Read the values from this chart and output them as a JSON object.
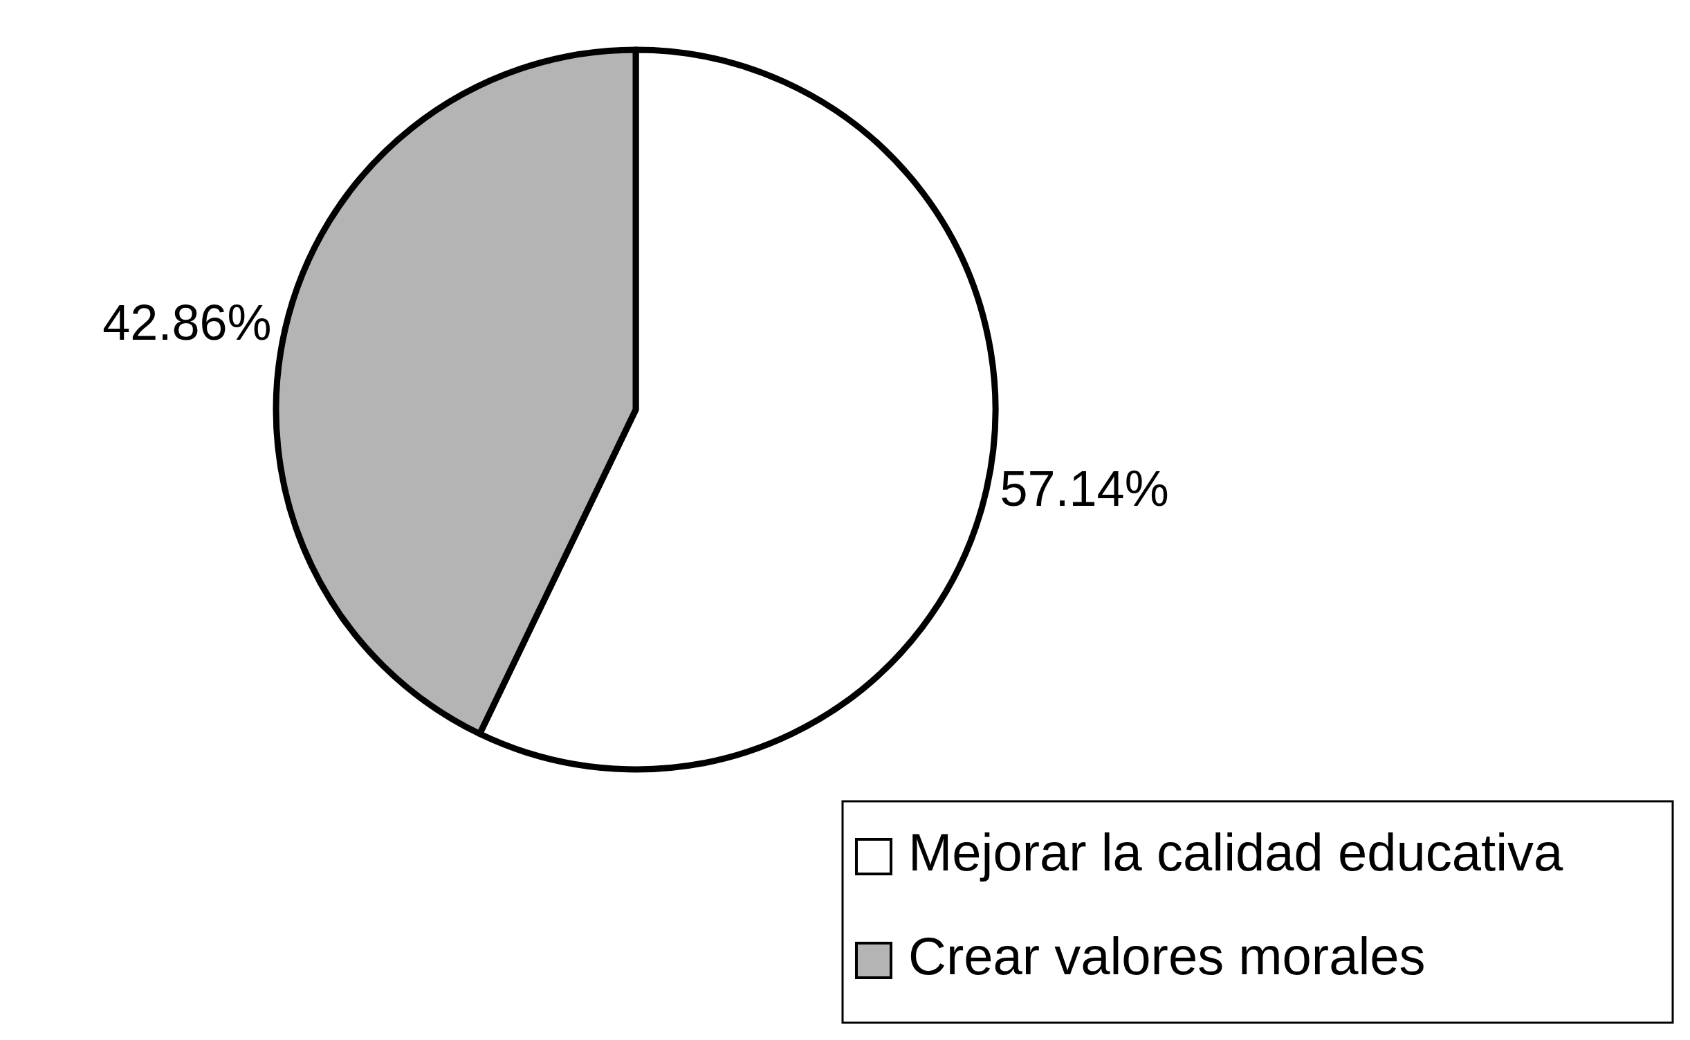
{
  "chart_data": {
    "type": "pie",
    "categories": [
      "Mejorar la calidad educativa",
      "Crear valores morales"
    ],
    "values": [
      57.14,
      42.86
    ],
    "colors": [
      "#ffffff",
      "#b4b4b4"
    ],
    "value_labels": [
      "57.14%",
      "42.86%"
    ],
    "legend": "bottom right"
  }
}
